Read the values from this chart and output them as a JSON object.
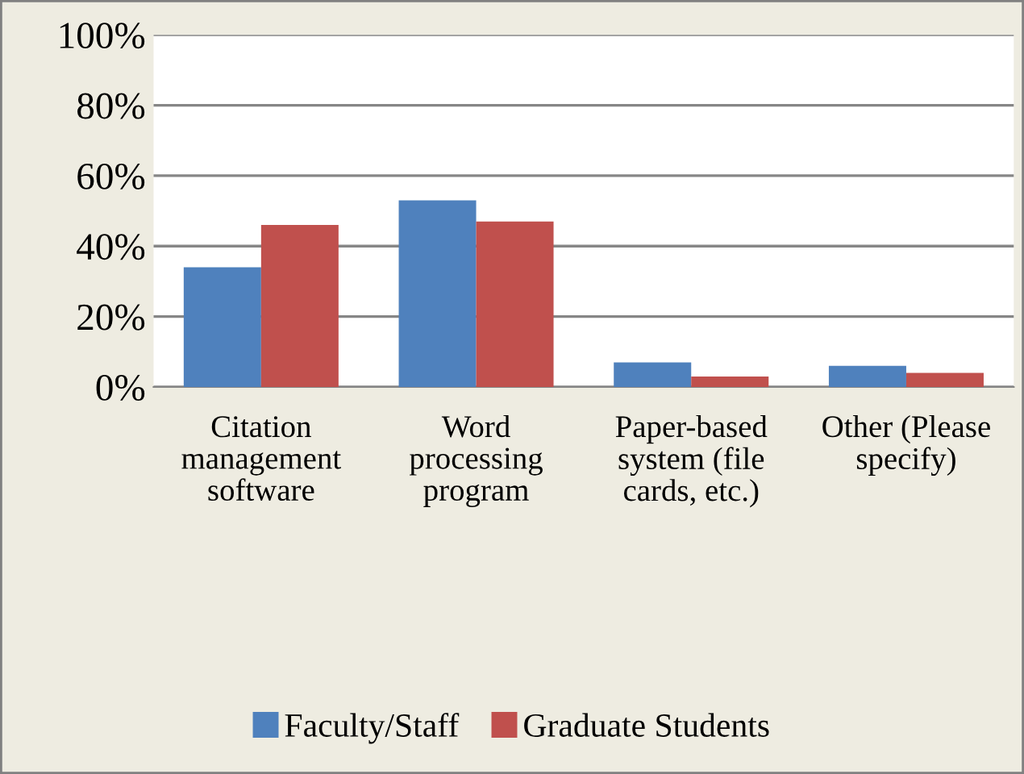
{
  "chart_data": {
    "type": "bar",
    "categories": [
      "Citation management software",
      "Word processing program",
      "Paper-based system (file cards, etc.)",
      "Other (Please specify)"
    ],
    "series": [
      {
        "name": "Faculty/Staff",
        "color": "#4f81bd",
        "values": [
          34,
          53,
          7,
          6
        ]
      },
      {
        "name": "Graduate Students",
        "color": "#c0504d",
        "values": [
          46,
          47,
          3,
          4
        ]
      }
    ],
    "ylim": [
      0,
      100
    ],
    "yticks": [
      {
        "value": 0,
        "label": "0%"
      },
      {
        "value": 20,
        "label": "20%"
      },
      {
        "value": 40,
        "label": "40%"
      },
      {
        "value": 60,
        "label": "60%"
      },
      {
        "value": 80,
        "label": "80%"
      },
      {
        "value": 100,
        "label": "100%"
      }
    ],
    "grid": "y",
    "legend": "bottom"
  }
}
